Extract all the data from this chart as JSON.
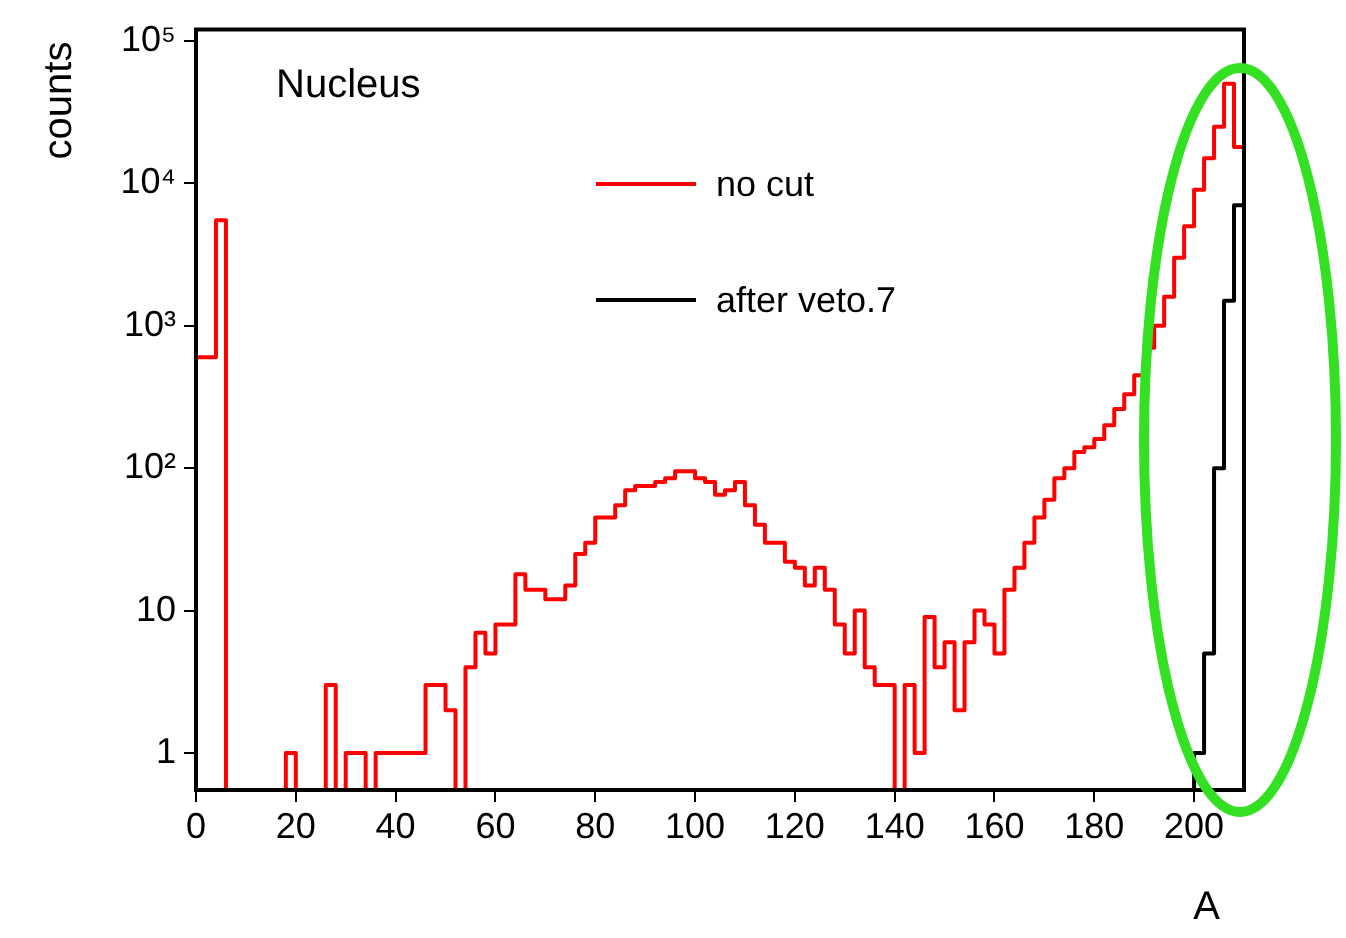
{
  "chart_data": {
    "type": "histogram",
    "xlabel": "A",
    "ylabel": "counts",
    "annotations": [
      "Nucleus"
    ],
    "bins": [
      0,
      2,
      4,
      6,
      8,
      10,
      12,
      14,
      16,
      18,
      20,
      22,
      24,
      26,
      28,
      30,
      32,
      34,
      36,
      38,
      40,
      42,
      44,
      46,
      48,
      50,
      52,
      54,
      56,
      58,
      60,
      62,
      64,
      66,
      68,
      70,
      72,
      74,
      76,
      78,
      80,
      82,
      84,
      86,
      88,
      90,
      92,
      94,
      96,
      98,
      100,
      102,
      104,
      106,
      108,
      110,
      112,
      114,
      116,
      118,
      120,
      122,
      124,
      126,
      128,
      130,
      132,
      134,
      136,
      138,
      140,
      142,
      144,
      146,
      148,
      150,
      152,
      154,
      156,
      158,
      160,
      162,
      164,
      166,
      168,
      170,
      172,
      174,
      176,
      178,
      180,
      182,
      184,
      186,
      188,
      190,
      192,
      194,
      196,
      198,
      200,
      202,
      204,
      206,
      208,
      210
    ],
    "series": [
      {
        "name": "no cut",
        "color": "#ff0000",
        "values": [
          600,
          600,
          5500,
          null,
          null,
          null,
          null,
          null,
          null,
          1,
          null,
          null,
          null,
          3,
          null,
          1,
          1,
          null,
          1,
          1,
          1,
          1,
          1,
          3,
          3,
          2,
          null,
          4,
          7,
          5,
          8,
          8,
          18,
          14,
          14,
          12,
          12,
          15,
          25,
          30,
          45,
          45,
          55,
          70,
          75,
          75,
          80,
          85,
          95,
          95,
          85,
          80,
          65,
          70,
          80,
          55,
          40,
          30,
          30,
          22,
          20,
          15,
          20,
          14,
          8,
          5,
          10,
          4,
          3,
          3,
          null,
          3,
          1,
          9,
          4,
          6,
          2,
          6,
          10,
          8,
          5,
          14,
          20,
          30,
          45,
          60,
          85,
          100,
          130,
          140,
          160,
          200,
          260,
          330,
          450,
          700,
          1000,
          1600,
          3000,
          5000,
          9000,
          15000,
          25000,
          50000,
          18000
        ]
      },
      {
        "name": "after veto.7",
        "color": "#000000",
        "values": [
          null,
          null,
          null,
          null,
          null,
          null,
          null,
          null,
          null,
          null,
          null,
          null,
          null,
          null,
          null,
          null,
          null,
          null,
          null,
          null,
          null,
          null,
          null,
          null,
          null,
          null,
          null,
          null,
          null,
          null,
          null,
          null,
          null,
          null,
          null,
          null,
          null,
          null,
          null,
          null,
          null,
          null,
          null,
          null,
          null,
          null,
          null,
          null,
          null,
          null,
          null,
          null,
          null,
          null,
          null,
          null,
          null,
          null,
          null,
          null,
          null,
          null,
          null,
          null,
          null,
          null,
          null,
          null,
          null,
          null,
          null,
          null,
          null,
          null,
          null,
          null,
          null,
          null,
          null,
          null,
          null,
          null,
          null,
          null,
          null,
          null,
          null,
          null,
          null,
          null,
          null,
          null,
          null,
          null,
          null,
          null,
          null,
          null,
          null,
          null,
          1,
          5,
          100,
          1500,
          7000
        ]
      }
    ],
    "xlim": [
      0,
      210
    ],
    "xticks": [
      0,
      20,
      40,
      60,
      80,
      100,
      120,
      140,
      160,
      180,
      200
    ],
    "ylim": [
      0.55,
      120000
    ],
    "yticks": [
      1,
      10,
      {
        "value": 100,
        "label": "10²"
      },
      {
        "value": 1000,
        "label": "10³"
      },
      {
        "value": 10000,
        "label": "10⁴"
      },
      {
        "value": 100000,
        "label": "10⁵"
      }
    ],
    "log": "y",
    "legend": "top",
    "grid": false
  }
}
